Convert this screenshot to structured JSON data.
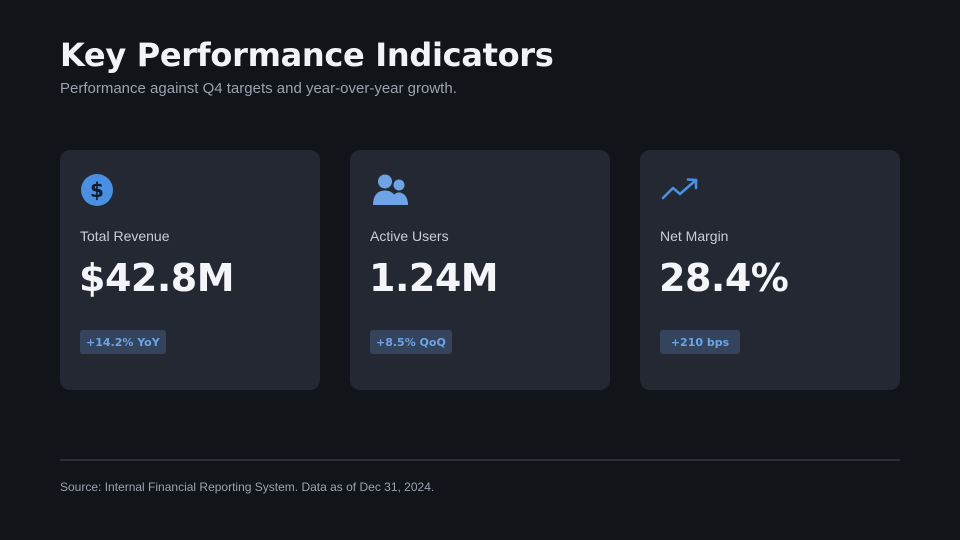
{
  "header": {
    "title": "Key Performance Indicators",
    "subtitle": "Performance against Q4 targets and year-over-year growth."
  },
  "cards": [
    {
      "icon": "dollar-circle-icon",
      "label": "Total Revenue",
      "value": "$42.8M",
      "badge": "+14.2% YoY"
    },
    {
      "icon": "users-icon",
      "label": "Active Users",
      "value": "1.24M",
      "badge": "+8.5% QoQ"
    },
    {
      "icon": "trending-up-icon",
      "label": "Net Margin",
      "value": "28.4%",
      "badge": "+210 bps"
    }
  ],
  "footer": {
    "source": "Source: Internal Financial Reporting System. Data as of Dec 31, 2024."
  },
  "colors": {
    "background": "#111419",
    "card": "#232833",
    "accent": "#4a90e2",
    "badge_bg": "#33445c",
    "badge_text": "#6ea4e6"
  }
}
